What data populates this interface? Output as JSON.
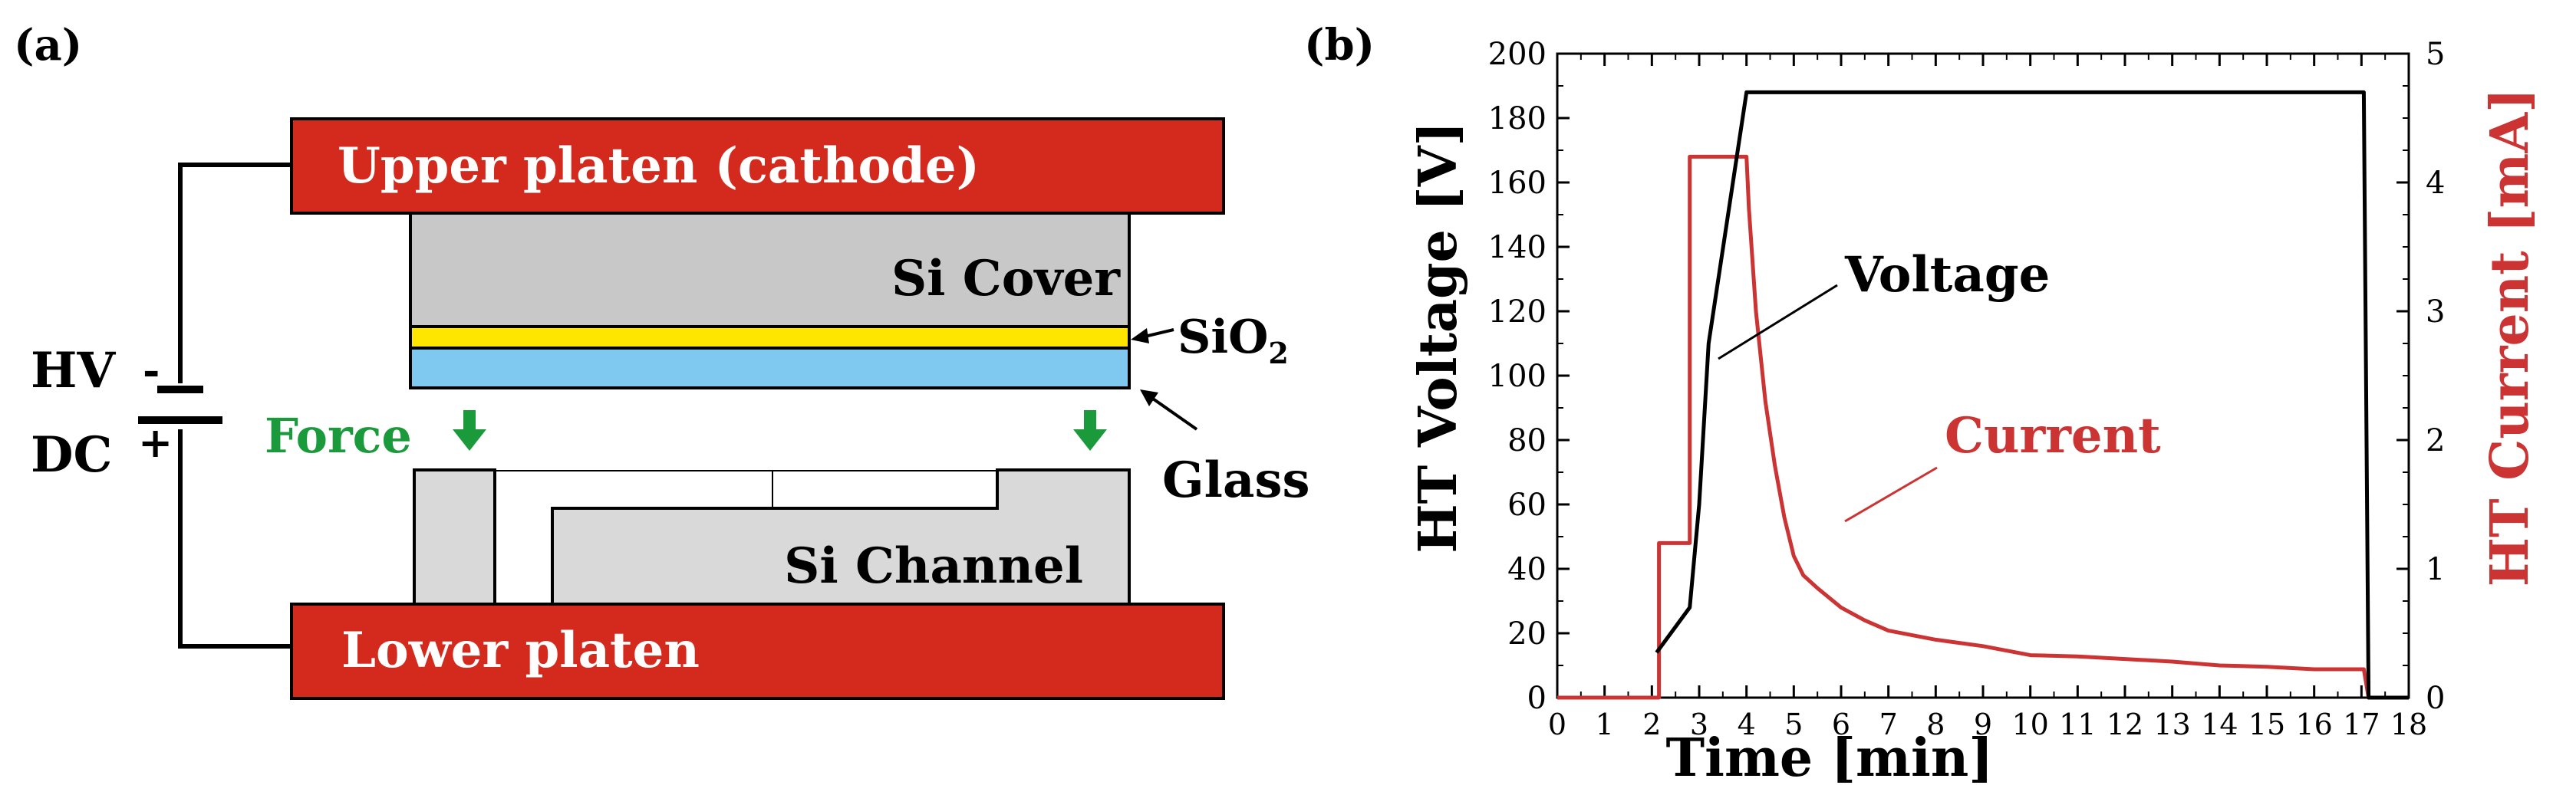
{
  "panel_a": {
    "label": "(a)",
    "upper_platen": "Upper platen (cathode)",
    "lower_platen": "Lower platen",
    "si_cover": "Si Cover",
    "si_channel": "Si Channel",
    "sio2_main": "SiO",
    "sio2_sub": "2",
    "glass": "Glass",
    "force": "Force",
    "hv": "HV",
    "dc": "DC",
    "minus": "-",
    "plus": "+",
    "colors": {
      "platen": "#d42a1e",
      "silicon": "#c8c8c8",
      "channel": "#d9d9d9",
      "oxide": "#ffe600",
      "glass": "#7fc8f0",
      "force": "#1a9a3a"
    }
  },
  "panel_b": {
    "label": "(b)",
    "colors": {
      "voltage": "#000000",
      "current": "#cc3333"
    }
  },
  "chart_data": {
    "type": "line",
    "title": "",
    "xlabel": "Time [min]",
    "ylabel": "HT Voltage [V]",
    "ylabel_right": "HT Current [mA]",
    "xlim": [
      0,
      18
    ],
    "ylim": [
      0,
      200
    ],
    "ylim_right": [
      0,
      5
    ],
    "x_ticks": [
      "0",
      "1",
      "2",
      "3",
      "4",
      "5",
      "6",
      "7",
      "8",
      "9",
      "10",
      "11",
      "12",
      "13",
      "14",
      "15",
      "16",
      "17",
      "18"
    ],
    "y_ticks": [
      "0",
      "20",
      "40",
      "60",
      "80",
      "100",
      "120",
      "140",
      "160",
      "180",
      "200"
    ],
    "y_ticks_right": [
      "0",
      "1",
      "2",
      "3",
      "4",
      "5"
    ],
    "series": [
      {
        "name": "Voltage",
        "axis": "left",
        "color": "#000000",
        "x": [
          2.1,
          2.8,
          3.0,
          3.2,
          4.0,
          8.0,
          12.0,
          16.0,
          17.05,
          17.15,
          18.0
        ],
        "y": [
          14,
          28,
          60,
          110,
          188,
          188,
          188,
          188,
          188,
          0,
          0
        ]
      },
      {
        "name": "Current",
        "axis": "right",
        "color": "#cc3333",
        "x": [
          0,
          2.15,
          2.15,
          2.8,
          2.8,
          4.0,
          4.05,
          4.2,
          4.4,
          4.6,
          4.8,
          5.0,
          5.2,
          5.5,
          6.0,
          6.5,
          7.0,
          8.0,
          9.0,
          10.0,
          11.0,
          12.0,
          13.0,
          14.0,
          15.0,
          16.0,
          17.05,
          17.15,
          18.0
        ],
        "y": [
          0,
          0,
          1.2,
          1.2,
          4.2,
          4.2,
          3.8,
          3.0,
          2.3,
          1.8,
          1.4,
          1.1,
          0.95,
          0.85,
          0.7,
          0.6,
          0.52,
          0.45,
          0.4,
          0.33,
          0.32,
          0.3,
          0.28,
          0.25,
          0.24,
          0.22,
          0.22,
          0,
          0
        ]
      }
    ],
    "annotations": [
      {
        "text": "Voltage",
        "color": "#000000"
      },
      {
        "text": "Current",
        "color": "#cc3333"
      }
    ]
  }
}
